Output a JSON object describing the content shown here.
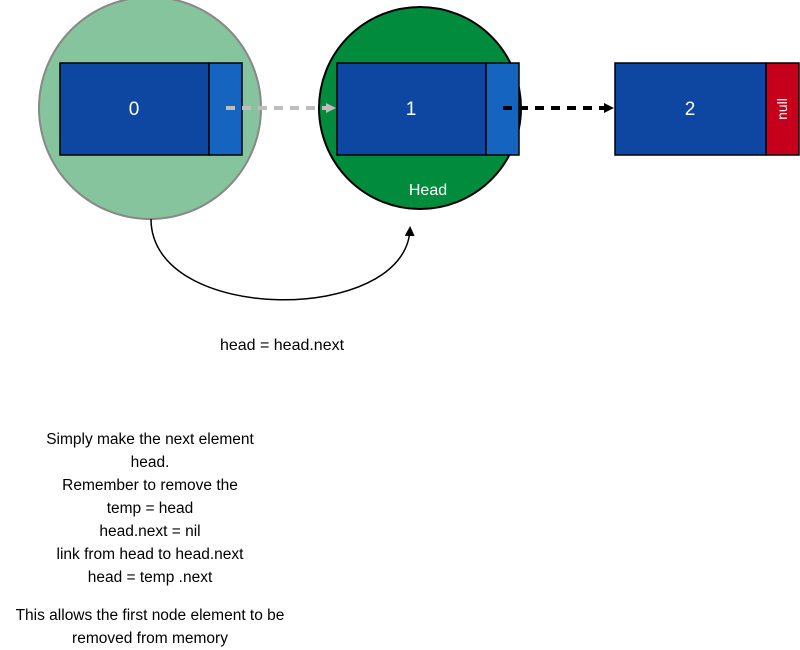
{
  "nodes": [
    {
      "id": "0",
      "value": "0"
    },
    {
      "id": "1",
      "value": "1",
      "marker": "Head"
    },
    {
      "id": "2",
      "value": "2",
      "terminator": "null"
    }
  ],
  "edge_label": "head = head.next",
  "notes": {
    "lines": [
      "Simply make the next element",
      "head.",
      "Remember to remove the",
      "temp = head",
      "head.next = nil",
      "link from head to head.next",
      "head = temp .next"
    ],
    "footer_lines": [
      "This allows the first node element to be",
      "removed from memory"
    ]
  },
  "colors": {
    "old_head_circle": "#85c49c",
    "head_circle": "#008c3c",
    "node_body": "#0d47a1",
    "node_pointer": "#1565c0",
    "null_box": "#c6001a",
    "faded_link": "#bdbdbd",
    "active_link": "#000000"
  }
}
